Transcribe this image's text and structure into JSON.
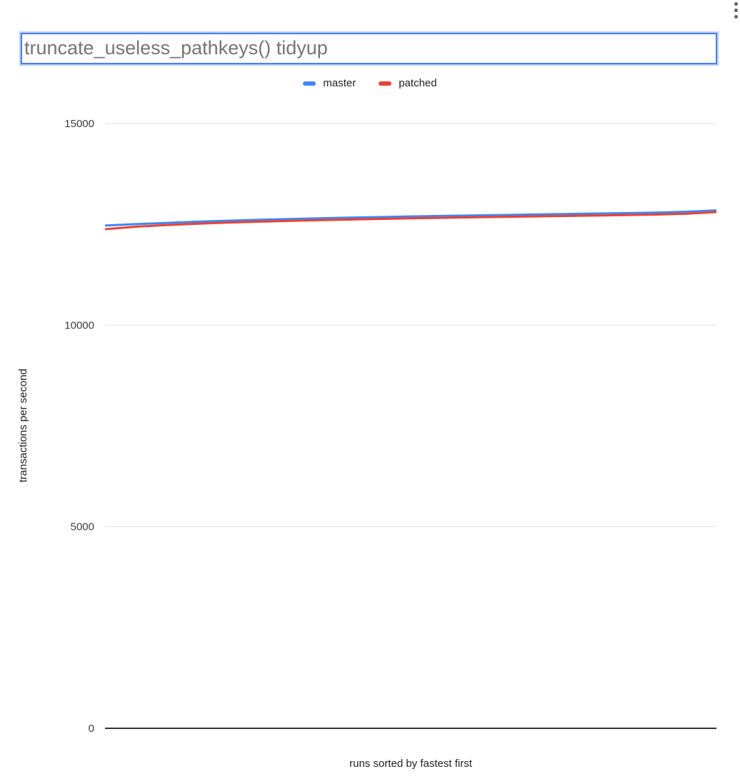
{
  "menu": {
    "icon": "three-dot-vertical-menu"
  },
  "title": {
    "text": "truncate_useless_pathkeys() tidyup"
  },
  "legend": {
    "items": [
      {
        "label": "master",
        "color": "#4285f4"
      },
      {
        "label": "patched",
        "color": "#ea4335"
      }
    ]
  },
  "chart_data": {
    "type": "line",
    "title": "truncate_useless_pathkeys() tidyup",
    "xlabel": "runs sorted by fastest first",
    "ylabel": "transactions per second",
    "x": [
      1,
      2,
      3,
      4,
      5,
      6,
      7,
      8,
      9,
      10,
      11,
      12,
      13,
      14,
      15,
      16,
      17,
      18,
      19,
      20,
      21
    ],
    "series": [
      {
        "name": "master",
        "color": "#4285f4",
        "values": [
          12470,
          12505,
          12535,
          12565,
          12590,
          12612,
          12632,
          12650,
          12666,
          12681,
          12695,
          12708,
          12720,
          12732,
          12744,
          12755,
          12766,
          12777,
          12790,
          12810,
          12845
        ]
      },
      {
        "name": "patched",
        "color": "#ea4335",
        "values": [
          12380,
          12440,
          12480,
          12515,
          12542,
          12565,
          12585,
          12603,
          12619,
          12634,
          12648,
          12661,
          12673,
          12685,
          12696,
          12707,
          12718,
          12729,
          12742,
          12762,
          12805
        ]
      }
    ],
    "y_ticks": [
      0,
      5000,
      10000,
      15000
    ],
    "ylim": [
      0,
      15000
    ],
    "xlim_runs": [
      1,
      21
    ],
    "grid": true,
    "legend_position": "top",
    "x_tick_labels_shown": false
  },
  "colors": {
    "gridline": "#e3e3e3",
    "baseline": "#333333",
    "title_text": "#757575",
    "title_border": "#4a80f0"
  }
}
